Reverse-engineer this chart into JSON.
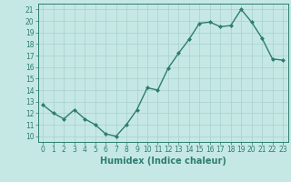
{
  "x": [
    0,
    1,
    2,
    3,
    4,
    5,
    6,
    7,
    8,
    9,
    10,
    11,
    12,
    13,
    14,
    15,
    16,
    17,
    18,
    19,
    20,
    21,
    22,
    23
  ],
  "y": [
    12.7,
    12.0,
    11.5,
    12.3,
    11.5,
    11.0,
    10.2,
    10.0,
    11.0,
    12.3,
    14.2,
    14.0,
    15.9,
    17.2,
    18.4,
    19.8,
    19.9,
    19.5,
    19.6,
    21.0,
    19.9,
    18.5,
    16.7,
    16.6
  ],
  "line_color": "#2e7d6e",
  "marker": "D",
  "markersize": 2.0,
  "linewidth": 1.0,
  "bg_color": "#c5e8e5",
  "grid_color": "#a8d0cc",
  "xlabel": "Humidex (Indice chaleur)",
  "xlim": [
    -0.5,
    23.5
  ],
  "ylim": [
    9.5,
    21.5
  ],
  "yticks": [
    10,
    11,
    12,
    13,
    14,
    15,
    16,
    17,
    18,
    19,
    20,
    21
  ],
  "xticks": [
    0,
    1,
    2,
    3,
    4,
    5,
    6,
    7,
    8,
    9,
    10,
    11,
    12,
    13,
    14,
    15,
    16,
    17,
    18,
    19,
    20,
    21,
    22,
    23
  ],
  "tick_fontsize": 5.5,
  "xlabel_fontsize": 7.0
}
